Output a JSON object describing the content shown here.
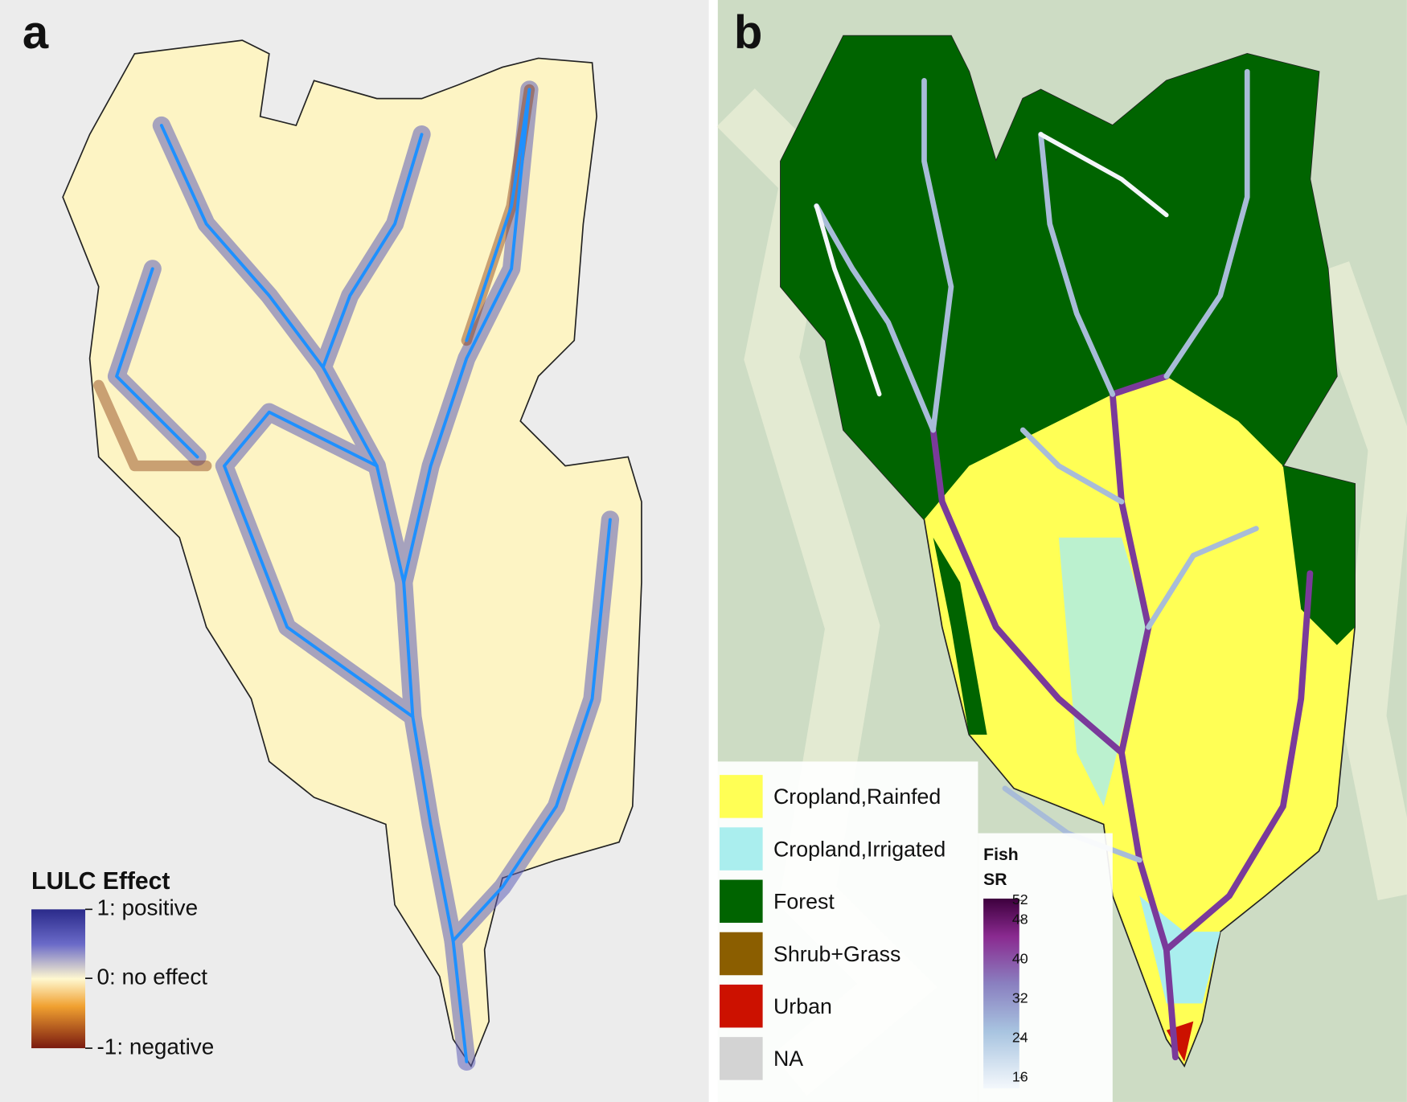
{
  "panels": [
    {
      "label": "a",
      "legend": {
        "title": "LULC Effect",
        "labels": [
          "1: positive",
          "0: no effect",
          "-1: negative"
        ]
      }
    },
    {
      "label": "b",
      "land_cover": [
        {
          "name": "Cropland,Rainfed",
          "color": "#ffff55"
        },
        {
          "name": "Cropland,Irrigated",
          "color": "#aaeeee"
        },
        {
          "name": "Forest",
          "color": "#006400"
        },
        {
          "name": "Shrub+Grass",
          "color": "#8b5e00"
        },
        {
          "name": "Urban",
          "color": "#cc1100"
        },
        {
          "name": "NA",
          "color": "#d3d3d3"
        }
      ],
      "fish_sr": {
        "title_lines": [
          "Fish",
          "SR"
        ],
        "ticks": [
          52,
          48,
          40,
          32,
          24,
          16
        ]
      }
    }
  ]
}
